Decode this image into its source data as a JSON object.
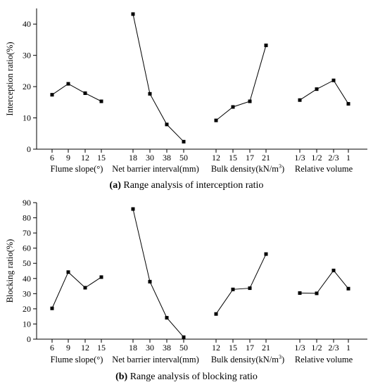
{
  "chart_data": [
    {
      "type": "line",
      "caption_prefix": "(a)",
      "caption_text": " Range analysis of interception ratio",
      "ylabel": "Interception ratio(%)",
      "ylim": [
        0,
        45
      ],
      "yticks": [
        0,
        10,
        20,
        30,
        40
      ],
      "groups": [
        {
          "xlabel": "Flume slope(°)",
          "categories": [
            "6",
            "9",
            "12",
            "15"
          ],
          "values": [
            17.4,
            20.9,
            17.9,
            15.3
          ]
        },
        {
          "xlabel": "Net barrier interval(mm)",
          "categories": [
            "18",
            "30",
            "38",
            "50"
          ],
          "values": [
            43.2,
            17.7,
            7.9,
            2.4
          ]
        },
        {
          "xlabel": "Bulk density(kN/m",
          "xlabel_sup": "3",
          "xlabel_tail": ")",
          "categories": [
            "12",
            "15",
            "17",
            "21"
          ],
          "values": [
            9.2,
            13.5,
            15.3,
            33.2
          ]
        },
        {
          "xlabel": "Relative volume",
          "categories": [
            "1/3",
            "1/2",
            "2/3",
            "1"
          ],
          "values": [
            15.7,
            19.2,
            22.0,
            14.5
          ]
        }
      ]
    },
    {
      "type": "line",
      "caption_prefix": "(b)",
      "caption_text": " Range analysis of blocking ratio",
      "ylabel": "Blocking ratio(%)",
      "ylim": [
        0,
        90
      ],
      "yticks": [
        0,
        10,
        20,
        30,
        40,
        50,
        60,
        70,
        80,
        90
      ],
      "groups": [
        {
          "xlabel": "Flume slope(°)",
          "categories": [
            "6",
            "9",
            "12",
            "15"
          ],
          "values": [
            20.3,
            44.2,
            33.9,
            40.9
          ]
        },
        {
          "xlabel": "Net barrier interval(mm)",
          "categories": [
            "18",
            "30",
            "38",
            "50"
          ],
          "values": [
            85.8,
            37.9,
            14.1,
            1.3
          ]
        },
        {
          "xlabel": "Bulk density(kN/m",
          "xlabel_sup": "3",
          "xlabel_tail": ")",
          "categories": [
            "12",
            "15",
            "17",
            "21"
          ],
          "values": [
            16.6,
            32.8,
            33.6,
            56.1
          ]
        },
        {
          "xlabel": "Relative volume",
          "categories": [
            "1/3",
            "1/2",
            "2/3",
            "1"
          ],
          "values": [
            30.4,
            30.2,
            45.3,
            33.3
          ]
        }
      ]
    }
  ]
}
